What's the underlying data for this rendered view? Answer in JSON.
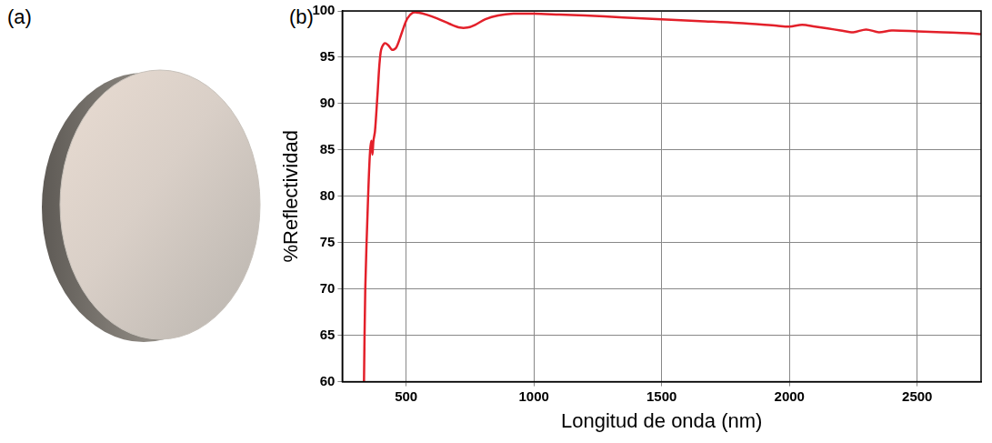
{
  "panel_labels": [
    "(a)",
    "(b)"
  ],
  "chart_data": {
    "type": "line",
    "x_label": "Longitud de onda (nm)",
    "y_label": "%Reflectividad",
    "color": "#e3202a",
    "grid": true,
    "xlim": [
      250,
      2750
    ],
    "xticks": [
      500,
      1000,
      1500,
      2000,
      2500
    ],
    "ylim": [
      60,
      100
    ],
    "yticks": [
      60,
      65,
      70,
      75,
      80,
      85,
      90,
      95,
      100
    ],
    "x": [
      335,
      340,
      350,
      358,
      364,
      368,
      372,
      378,
      388,
      400,
      415,
      430,
      445,
      460,
      475,
      490,
      505,
      525,
      550,
      580,
      620,
      670,
      710,
      740,
      770,
      810,
      860,
      920,
      1000,
      1100,
      1200,
      1350,
      1500,
      1650,
      1800,
      1950,
      2000,
      2050,
      2100,
      2150,
      2200,
      2250,
      2300,
      2350,
      2400,
      2500,
      2600,
      2700,
      2750
    ],
    "values": [
      60,
      70,
      79,
      84.5,
      86,
      84.5,
      86,
      87,
      91,
      95.5,
      96.5,
      96.3,
      95.8,
      96,
      97,
      98.2,
      99.2,
      99.8,
      99.8,
      99.6,
      99.2,
      98.6,
      98.2,
      98.2,
      98.5,
      99.1,
      99.5,
      99.7,
      99.7,
      99.6,
      99.5,
      99.3,
      99.1,
      98.9,
      98.7,
      98.4,
      98.3,
      98.5,
      98.3,
      98.1,
      97.9,
      97.7,
      98.0,
      97.7,
      97.9,
      97.8,
      97.7,
      97.6,
      97.5
    ]
  }
}
